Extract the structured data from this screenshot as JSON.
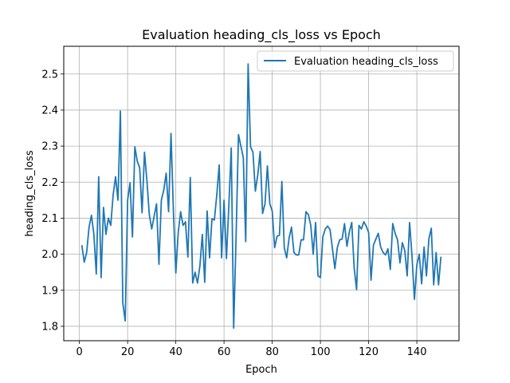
{
  "chart_data": {
    "type": "line",
    "title": "Evaluation heading_cls_loss vs Epoch",
    "xlabel": "Epoch",
    "ylabel": "heading_cls_loss",
    "xlim": [
      -6.5,
      157.5
    ],
    "ylim": [
      1.76,
      2.577
    ],
    "xticks": [
      0,
      20,
      40,
      60,
      80,
      100,
      120,
      140
    ],
    "yticks": [
      1.8,
      1.9,
      2.0,
      2.1,
      2.2,
      2.3,
      2.4,
      2.5
    ],
    "grid": true,
    "legend_position": "upper right",
    "color": "#1f77b4",
    "series": [
      {
        "name": "Evaluation heading_cls_loss",
        "x": [
          1,
          2,
          3,
          4,
          5,
          6,
          7,
          8,
          9,
          10,
          11,
          12,
          13,
          14,
          15,
          16,
          17,
          18,
          19,
          20,
          21,
          22,
          23,
          24,
          25,
          26,
          27,
          28,
          29,
          30,
          31,
          32,
          33,
          34,
          35,
          36,
          37,
          38,
          39,
          40,
          41,
          42,
          43,
          44,
          45,
          46,
          47,
          48,
          49,
          50,
          51,
          52,
          53,
          54,
          55,
          56,
          57,
          58,
          59,
          60,
          61,
          62,
          63,
          64,
          65,
          66,
          67,
          68,
          69,
          70,
          71,
          72,
          73,
          74,
          75,
          76,
          77,
          78,
          79,
          80,
          81,
          82,
          83,
          84,
          85,
          86,
          87,
          88,
          89,
          90,
          91,
          92,
          93,
          94,
          95,
          96,
          97,
          98,
          99,
          100,
          101,
          102,
          103,
          104,
          105,
          106,
          107,
          108,
          109,
          110,
          111,
          112,
          113,
          114,
          115,
          116,
          117,
          118,
          119,
          120,
          121,
          122,
          123,
          124,
          125,
          126,
          127,
          128,
          129,
          130,
          131,
          132,
          133,
          134,
          135,
          136,
          137,
          138,
          139,
          140,
          141,
          142,
          143,
          144,
          145,
          146,
          147,
          148,
          149,
          150
        ],
        "y": [
          2.025,
          1.978,
          2.005,
          2.075,
          2.108,
          2.055,
          1.945,
          2.215,
          1.935,
          2.13,
          2.055,
          2.1,
          2.08,
          2.165,
          2.215,
          2.15,
          2.397,
          1.865,
          1.815,
          2.15,
          2.198,
          2.048,
          2.298,
          2.258,
          2.24,
          2.115,
          2.283,
          2.205,
          2.11,
          2.07,
          2.105,
          2.14,
          1.972,
          2.15,
          2.178,
          2.225,
          2.118,
          2.335,
          2.12,
          1.948,
          2.06,
          2.118,
          2.08,
          2.09,
          1.992,
          2.213,
          1.92,
          1.95,
          1.92,
          1.968,
          2.055,
          1.922,
          2.12,
          1.99,
          2.098,
          2.095,
          2.165,
          2.248,
          1.99,
          2.15,
          1.988,
          2.135,
          2.295,
          1.795,
          2.045,
          2.332,
          2.3,
          2.268,
          2.035,
          2.528,
          2.298,
          2.283,
          2.175,
          2.22,
          2.285,
          2.113,
          2.14,
          2.245,
          2.14,
          2.12,
          2.018,
          2.05,
          2.053,
          2.202,
          2.018,
          1.99,
          2.045,
          2.075,
          2.005,
          1.998,
          1.998,
          2.04,
          2.04,
          2.118,
          2.11,
          2.08,
          2.0,
          2.088,
          1.94,
          1.935,
          2.048,
          2.07,
          2.078,
          2.068,
          2.015,
          1.96,
          2.018,
          2.04,
          2.042,
          2.085,
          2.022,
          2.062,
          2.088,
          1.962,
          1.902,
          2.08,
          2.07,
          2.09,
          2.078,
          2.06,
          1.928,
          2.025,
          2.042,
          2.058,
          2.02,
          2.005,
          1.998,
          2.015,
          1.958,
          2.085,
          2.058,
          2.04,
          1.976,
          2.032,
          2.01,
          1.94,
          2.088,
          1.995,
          1.875,
          1.97,
          2.0,
          1.918,
          2.02,
          1.94,
          2.043,
          2.072,
          1.915,
          2.005,
          1.915,
          1.993
        ]
      }
    ]
  }
}
